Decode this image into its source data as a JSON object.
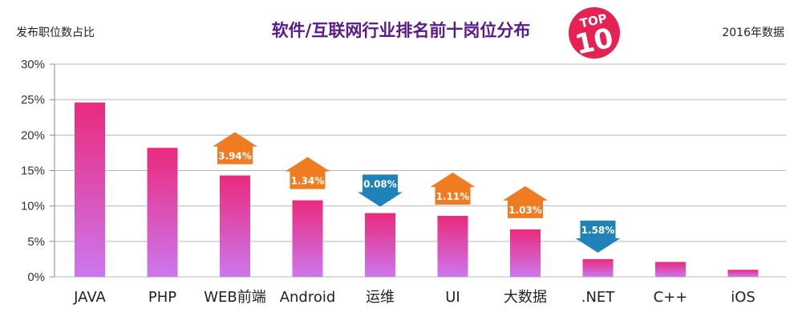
{
  "header": {
    "title": "软件/互联网行业排名前十岗位分布",
    "ylabel": "发布职位数占比",
    "note": "2016年数据",
    "badge_top": "TOP",
    "badge_num": "10"
  },
  "colors": {
    "bar_top": "#ea2a7d",
    "bar_bottom": "#cc77ee",
    "up": "#f07c22",
    "down": "#1f82b8",
    "title": "#5a1a8c",
    "badge": "#e62253"
  },
  "chart_data": {
    "type": "bar",
    "title": "软件/互联网行业排名前十岗位分布",
    "ylabel": "发布职位数占比",
    "ylim": [
      0,
      30
    ],
    "yticks": [
      "0%",
      "5%",
      "10%",
      "15%",
      "20%",
      "25%",
      "30%"
    ],
    "grid": true,
    "categories": [
      "JAVA",
      "PHP",
      "WEB前端",
      "Android",
      "运维",
      "UI",
      "大数据",
      ".NET",
      "C++",
      "iOS"
    ],
    "values": [
      24.6,
      18.2,
      14.3,
      10.8,
      9.0,
      8.6,
      6.7,
      2.5,
      2.1,
      1.0
    ],
    "annotations": [
      {
        "category": "WEB前端",
        "label": "3.94%",
        "direction": "up"
      },
      {
        "category": "Android",
        "label": "1.34%",
        "direction": "up"
      },
      {
        "category": "运维",
        "label": "0.08%",
        "direction": "down"
      },
      {
        "category": "UI",
        "label": "1.11%",
        "direction": "up"
      },
      {
        "category": "大数据",
        "label": "1.03%",
        "direction": "up"
      },
      {
        "category": ".NET",
        "label": "1.58%",
        "direction": "down"
      }
    ]
  }
}
